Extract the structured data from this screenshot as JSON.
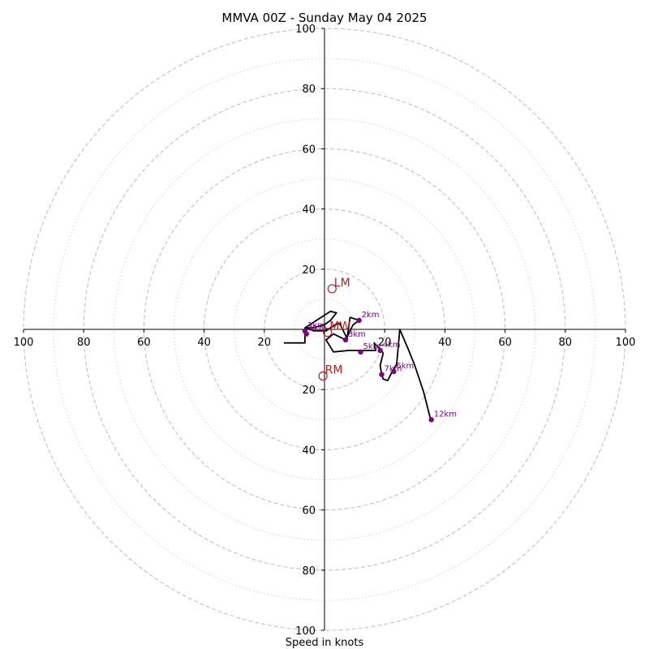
{
  "chart_data": {
    "type": "scatter",
    "title": "MMVA 00Z - Sunday May 04 2025",
    "xlabel": "Speed in knots",
    "ylabel": "",
    "xlim": [
      -100,
      100
    ],
    "ylim": [
      -100,
      100
    ],
    "major_rings": [
      20,
      40,
      60,
      80,
      100
    ],
    "minor_rings": [
      10,
      30,
      50,
      70,
      90
    ],
    "x_ticks": [
      {
        "value": -100,
        "label": "100"
      },
      {
        "value": -80,
        "label": "80"
      },
      {
        "value": -60,
        "label": "60"
      },
      {
        "value": -40,
        "label": "40"
      },
      {
        "value": -20,
        "label": "20"
      },
      {
        "value": 20,
        "label": "20"
      },
      {
        "value": 40,
        "label": "40"
      },
      {
        "value": 60,
        "label": "60"
      },
      {
        "value": 80,
        "label": "80"
      },
      {
        "value": 100,
        "label": "100"
      }
    ],
    "y_ticks": [
      {
        "value": 100,
        "label": "100"
      },
      {
        "value": 80,
        "label": "80"
      },
      {
        "value": 60,
        "label": "60"
      },
      {
        "value": 40,
        "label": "40"
      },
      {
        "value": 20,
        "label": "20"
      },
      {
        "value": -20,
        "label": "20"
      },
      {
        "value": -40,
        "label": "40"
      },
      {
        "value": -60,
        "label": "60"
      },
      {
        "value": -80,
        "label": "80"
      },
      {
        "value": -100,
        "label": "100"
      }
    ],
    "hodograph_line": [
      [
        -13.5,
        -4.5
      ],
      [
        -6.5,
        -4.5
      ],
      [
        -6.5,
        -1.5
      ],
      [
        -6.0,
        0.5
      ],
      [
        -4.0,
        0.5
      ],
      [
        -2.0,
        1.0
      ],
      [
        0.0,
        1.5
      ],
      [
        2.0,
        3.0
      ],
      [
        4.0,
        5.5
      ],
      [
        2.0,
        6.0
      ],
      [
        -6.5,
        0.5
      ],
      [
        -3.5,
        -0.5
      ],
      [
        0.5,
        -0.5
      ],
      [
        3.5,
        1.5
      ],
      [
        5.0,
        2.0
      ],
      [
        7.5,
        -3.0
      ],
      [
        8.5,
        4.0
      ],
      [
        11.5,
        3.0
      ],
      [
        9.5,
        1.5
      ],
      [
        7.0,
        -3.5
      ],
      [
        3.0,
        -1.5
      ],
      [
        0.5,
        -3.5
      ],
      [
        3.0,
        -7.5
      ],
      [
        8.0,
        -7.0
      ],
      [
        17.0,
        -7.0
      ],
      [
        16.5,
        -4.5
      ],
      [
        19.0,
        -7.0
      ],
      [
        19.5,
        -8.0
      ],
      [
        18.5,
        -12.0
      ],
      [
        19.0,
        -15.0
      ],
      [
        19.5,
        -16.5
      ],
      [
        21.0,
        -17.0
      ],
      [
        22.5,
        -14.0
      ],
      [
        24.0,
        -11.5
      ],
      [
        25.0,
        0.0
      ],
      [
        28.0,
        -7.0
      ],
      [
        30.0,
        -12.0
      ],
      [
        33.0,
        -21.0
      ],
      [
        35.0,
        -29.0
      ],
      [
        35.5,
        -30.0
      ]
    ],
    "points": [
      {
        "label": "1km",
        "x": -6.5,
        "y": -0.5
      },
      {
        "label": "1km",
        "x": -6.0,
        "y": -1.5
      },
      {
        "label": "2km",
        "x": 11.5,
        "y": 3.0
      },
      {
        "label": "3km",
        "x": 7.0,
        "y": -3.5
      },
      {
        "label": "4km",
        "x": 18.5,
        "y": -7.0
      },
      {
        "label": "5km",
        "x": 12.0,
        "y": -7.5
      },
      {
        "label": "6km",
        "x": 23.0,
        "y": -14.0
      },
      {
        "label": "7km",
        "x": 19.0,
        "y": -15.0
      },
      {
        "label": "12km",
        "x": 35.5,
        "y": -30.0
      }
    ],
    "storm_motion": [
      {
        "label": "LM",
        "x": 2.5,
        "y": 13.5
      },
      {
        "label": "MW",
        "x": 1.0,
        "y": -1.0
      },
      {
        "label": "RM",
        "x": -0.5,
        "y": -15.5
      }
    ],
    "colors": {
      "line": "#000000",
      "points": "#800080",
      "storm_motion": "#b22222",
      "grid": "#bbbbbb"
    }
  }
}
